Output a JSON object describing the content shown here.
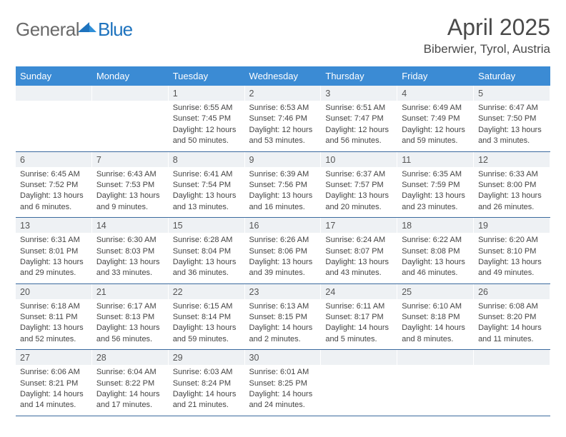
{
  "brand": {
    "part1": "General",
    "part2": "Blue"
  },
  "header": {
    "month_title": "April 2025",
    "location": "Biberwier, Tyrol, Austria"
  },
  "weekdays": [
    "Sunday",
    "Monday",
    "Tuesday",
    "Wednesday",
    "Thursday",
    "Friday",
    "Saturday"
  ],
  "colors": {
    "header_bg": "#3b8bd4",
    "header_text": "#ffffff",
    "daynum_bg": "#eef1f4",
    "row_border": "#3b6a9e",
    "logo_gray": "#6a6a6a",
    "logo_blue": "#1e73be",
    "text": "#333333"
  },
  "typography": {
    "title_fontsize": 32,
    "location_fontsize": 17,
    "weekday_fontsize": 13,
    "daynum_fontsize": 12.5,
    "body_fontsize": 11
  },
  "weeks": [
    [
      {
        "blank": true
      },
      {
        "blank": true
      },
      {
        "day": "1",
        "sunrise": "Sunrise: 6:55 AM",
        "sunset": "Sunset: 7:45 PM",
        "daylight": "Daylight: 12 hours and 50 minutes."
      },
      {
        "day": "2",
        "sunrise": "Sunrise: 6:53 AM",
        "sunset": "Sunset: 7:46 PM",
        "daylight": "Daylight: 12 hours and 53 minutes."
      },
      {
        "day": "3",
        "sunrise": "Sunrise: 6:51 AM",
        "sunset": "Sunset: 7:47 PM",
        "daylight": "Daylight: 12 hours and 56 minutes."
      },
      {
        "day": "4",
        "sunrise": "Sunrise: 6:49 AM",
        "sunset": "Sunset: 7:49 PM",
        "daylight": "Daylight: 12 hours and 59 minutes."
      },
      {
        "day": "5",
        "sunrise": "Sunrise: 6:47 AM",
        "sunset": "Sunset: 7:50 PM",
        "daylight": "Daylight: 13 hours and 3 minutes."
      }
    ],
    [
      {
        "day": "6",
        "sunrise": "Sunrise: 6:45 AM",
        "sunset": "Sunset: 7:52 PM",
        "daylight": "Daylight: 13 hours and 6 minutes."
      },
      {
        "day": "7",
        "sunrise": "Sunrise: 6:43 AM",
        "sunset": "Sunset: 7:53 PM",
        "daylight": "Daylight: 13 hours and 9 minutes."
      },
      {
        "day": "8",
        "sunrise": "Sunrise: 6:41 AM",
        "sunset": "Sunset: 7:54 PM",
        "daylight": "Daylight: 13 hours and 13 minutes."
      },
      {
        "day": "9",
        "sunrise": "Sunrise: 6:39 AM",
        "sunset": "Sunset: 7:56 PM",
        "daylight": "Daylight: 13 hours and 16 minutes."
      },
      {
        "day": "10",
        "sunrise": "Sunrise: 6:37 AM",
        "sunset": "Sunset: 7:57 PM",
        "daylight": "Daylight: 13 hours and 20 minutes."
      },
      {
        "day": "11",
        "sunrise": "Sunrise: 6:35 AM",
        "sunset": "Sunset: 7:59 PM",
        "daylight": "Daylight: 13 hours and 23 minutes."
      },
      {
        "day": "12",
        "sunrise": "Sunrise: 6:33 AM",
        "sunset": "Sunset: 8:00 PM",
        "daylight": "Daylight: 13 hours and 26 minutes."
      }
    ],
    [
      {
        "day": "13",
        "sunrise": "Sunrise: 6:31 AM",
        "sunset": "Sunset: 8:01 PM",
        "daylight": "Daylight: 13 hours and 29 minutes."
      },
      {
        "day": "14",
        "sunrise": "Sunrise: 6:30 AM",
        "sunset": "Sunset: 8:03 PM",
        "daylight": "Daylight: 13 hours and 33 minutes."
      },
      {
        "day": "15",
        "sunrise": "Sunrise: 6:28 AM",
        "sunset": "Sunset: 8:04 PM",
        "daylight": "Daylight: 13 hours and 36 minutes."
      },
      {
        "day": "16",
        "sunrise": "Sunrise: 6:26 AM",
        "sunset": "Sunset: 8:06 PM",
        "daylight": "Daylight: 13 hours and 39 minutes."
      },
      {
        "day": "17",
        "sunrise": "Sunrise: 6:24 AM",
        "sunset": "Sunset: 8:07 PM",
        "daylight": "Daylight: 13 hours and 43 minutes."
      },
      {
        "day": "18",
        "sunrise": "Sunrise: 6:22 AM",
        "sunset": "Sunset: 8:08 PM",
        "daylight": "Daylight: 13 hours and 46 minutes."
      },
      {
        "day": "19",
        "sunrise": "Sunrise: 6:20 AM",
        "sunset": "Sunset: 8:10 PM",
        "daylight": "Daylight: 13 hours and 49 minutes."
      }
    ],
    [
      {
        "day": "20",
        "sunrise": "Sunrise: 6:18 AM",
        "sunset": "Sunset: 8:11 PM",
        "daylight": "Daylight: 13 hours and 52 minutes."
      },
      {
        "day": "21",
        "sunrise": "Sunrise: 6:17 AM",
        "sunset": "Sunset: 8:13 PM",
        "daylight": "Daylight: 13 hours and 56 minutes."
      },
      {
        "day": "22",
        "sunrise": "Sunrise: 6:15 AM",
        "sunset": "Sunset: 8:14 PM",
        "daylight": "Daylight: 13 hours and 59 minutes."
      },
      {
        "day": "23",
        "sunrise": "Sunrise: 6:13 AM",
        "sunset": "Sunset: 8:15 PM",
        "daylight": "Daylight: 14 hours and 2 minutes."
      },
      {
        "day": "24",
        "sunrise": "Sunrise: 6:11 AM",
        "sunset": "Sunset: 8:17 PM",
        "daylight": "Daylight: 14 hours and 5 minutes."
      },
      {
        "day": "25",
        "sunrise": "Sunrise: 6:10 AM",
        "sunset": "Sunset: 8:18 PM",
        "daylight": "Daylight: 14 hours and 8 minutes."
      },
      {
        "day": "26",
        "sunrise": "Sunrise: 6:08 AM",
        "sunset": "Sunset: 8:20 PM",
        "daylight": "Daylight: 14 hours and 11 minutes."
      }
    ],
    [
      {
        "day": "27",
        "sunrise": "Sunrise: 6:06 AM",
        "sunset": "Sunset: 8:21 PM",
        "daylight": "Daylight: 14 hours and 14 minutes."
      },
      {
        "day": "28",
        "sunrise": "Sunrise: 6:04 AM",
        "sunset": "Sunset: 8:22 PM",
        "daylight": "Daylight: 14 hours and 17 minutes."
      },
      {
        "day": "29",
        "sunrise": "Sunrise: 6:03 AM",
        "sunset": "Sunset: 8:24 PM",
        "daylight": "Daylight: 14 hours and 21 minutes."
      },
      {
        "day": "30",
        "sunrise": "Sunrise: 6:01 AM",
        "sunset": "Sunset: 8:25 PM",
        "daylight": "Daylight: 14 hours and 24 minutes."
      },
      {
        "blank": true
      },
      {
        "blank": true
      },
      {
        "blank": true
      }
    ]
  ]
}
